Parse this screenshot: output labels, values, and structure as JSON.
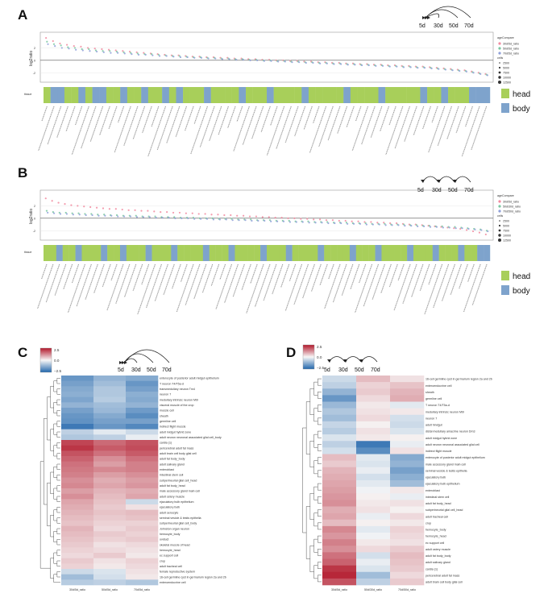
{
  "panels": {
    "A": {
      "letter": "A",
      "ylabel": "log2ratio",
      "tissue_label": "tissue",
      "timeline": [
        "5d",
        "30d",
        "50d",
        "70d"
      ],
      "legend": {
        "title": "ageCompare",
        "series": [
          "30d/5d_ratio",
          "50d/5d_ratio",
          "70d/5d_ratio"
        ],
        "size_title": "cells",
        "sizes": [
          "2500",
          "5000",
          "7500",
          "10000",
          "12500"
        ]
      },
      "tissue_legend": [
        "head",
        "body"
      ]
    },
    "B": {
      "letter": "B",
      "ylabel": "log2ratio",
      "tissue_label": "tissue",
      "timeline": [
        "5d",
        "30d",
        "50d",
        "70d"
      ],
      "legend": {
        "title": "ageCompare",
        "series": [
          "30d/5d_ratio",
          "50d/30d_ratio",
          "70d/50d_ratio"
        ],
        "size_title": "cells",
        "sizes": [
          "2500",
          "5000",
          "7500",
          "10000",
          "12500"
        ]
      },
      "tissue_legend": [
        "head",
        "body"
      ]
    },
    "C": {
      "letter": "C",
      "timeline": [
        "5d",
        "30d",
        "50d",
        "70d"
      ],
      "scale_ticks": [
        "2.5",
        "0.0",
        "−2.5"
      ]
    },
    "D": {
      "letter": "D",
      "timeline": [
        "5d",
        "30d",
        "50d",
        "70d"
      ],
      "scale_ticks": [
        "2.5",
        "0.0",
        "−2.5"
      ]
    }
  },
  "colors": {
    "head": "#a8cf5a",
    "body": "#7ea3cc",
    "s1": "#f28ba0",
    "s2": "#7ac7a0",
    "s3": "#8f9fd9",
    "hi": "#b2182b",
    "lo": "#2166ac"
  },
  "chart_data": [
    {
      "type": "scatter",
      "panel": "A",
      "ylabel": "log2ratio",
      "series": [
        {
          "name": "30d/5d_ratio",
          "values": [
            3.6,
            3.1,
            2.7,
            2.5,
            2.3,
            2.2,
            2.0,
            1.9,
            1.8,
            1.7,
            1.6,
            1.5,
            1.4,
            1.3,
            1.2,
            1.1,
            1.0,
            0.9,
            0.8,
            0.8,
            0.7,
            0.6,
            0.6,
            0.5,
            0.5,
            0.4,
            0.4,
            0.3,
            0.3,
            0.2,
            0.2,
            0.1,
            0.1,
            0.0,
            0.0,
            -0.1,
            -0.1,
            -0.2,
            -0.2,
            -0.3,
            -0.3,
            -0.4,
            -0.4,
            -0.5,
            -0.5,
            -0.6,
            -0.6,
            -0.7,
            -0.7,
            -0.8,
            -0.8,
            -0.9,
            -0.9,
            -1.0,
            -1.0,
            -1.1,
            -1.2,
            -1.3,
            -1.4,
            -1.5,
            -1.6,
            -1.8,
            -2.0,
            -2.2
          ]
        },
        {
          "name": "50d/5d_ratio",
          "values": [
            3.0,
            2.6,
            2.4,
            2.1,
            2.0,
            1.8,
            1.8,
            1.6,
            1.5,
            1.5,
            1.4,
            1.3,
            1.2,
            1.1,
            1.0,
            1.0,
            0.9,
            0.8,
            0.7,
            0.7,
            0.6,
            0.5,
            0.5,
            0.4,
            0.4,
            0.3,
            0.3,
            0.2,
            0.2,
            0.1,
            0.1,
            0.0,
            0.0,
            -0.1,
            -0.1,
            -0.2,
            -0.2,
            -0.3,
            -0.3,
            -0.4,
            -0.4,
            -0.5,
            -0.5,
            -0.6,
            -0.6,
            -0.7,
            -0.7,
            -0.8,
            -0.8,
            -0.9,
            -0.9,
            -1.0,
            -1.0,
            -1.1,
            -1.1,
            -1.2,
            -1.3,
            -1.4,
            -1.5,
            -1.6,
            -1.7,
            -1.9,
            -2.1,
            -2.3
          ]
        },
        {
          "name": "70d/5d_ratio",
          "values": [
            2.6,
            2.3,
            2.0,
            1.9,
            1.7,
            1.6,
            1.5,
            1.4,
            1.3,
            1.2,
            1.2,
            1.1,
            1.0,
            0.9,
            0.9,
            0.8,
            0.7,
            0.7,
            0.6,
            0.5,
            0.5,
            0.4,
            0.4,
            0.3,
            0.3,
            0.2,
            0.2,
            0.1,
            0.1,
            0.0,
            0.0,
            -0.1,
            -0.1,
            -0.2,
            -0.2,
            -0.3,
            -0.3,
            -0.4,
            -0.4,
            -0.5,
            -0.5,
            -0.6,
            -0.6,
            -0.7,
            -0.7,
            -0.8,
            -0.8,
            -0.9,
            -0.9,
            -1.0,
            -1.0,
            -1.1,
            -1.1,
            -1.2,
            -1.2,
            -1.3,
            -1.4,
            -1.5,
            -1.6,
            -1.7,
            -1.8,
            -2.0,
            -2.2,
            -2.4
          ]
        }
      ],
      "tissue": [
        "h",
        "b",
        "b",
        "h",
        "h",
        "b",
        "h",
        "b",
        "b",
        "h",
        "h",
        "b",
        "h",
        "h",
        "b",
        "h",
        "h",
        "b",
        "h",
        "b",
        "h",
        "h",
        "h",
        "b",
        "h",
        "h",
        "h",
        "h",
        "b",
        "h",
        "h",
        "h",
        "b",
        "h",
        "h",
        "h",
        "h",
        "b",
        "h",
        "h",
        "h",
        "h",
        "h",
        "b",
        "h",
        "h",
        "h",
        "h",
        "b",
        "h",
        "h",
        "h",
        "h",
        "h",
        "b",
        "h",
        "h",
        "b",
        "h",
        "h",
        "h",
        "b",
        "b",
        "b"
      ]
    },
    {
      "type": "scatter",
      "panel": "B",
      "ylabel": "log2ratio",
      "series": [
        {
          "name": "30d/5d_ratio",
          "values": [
            3.2,
            2.8,
            2.5,
            2.3,
            2.1,
            2.0,
            1.9,
            1.8,
            1.7,
            1.6,
            1.5,
            1.5,
            1.4,
            1.3,
            1.3,
            1.2,
            1.2,
            1.1,
            1.0,
            1.0,
            0.9,
            0.9,
            0.8,
            0.8,
            0.7,
            0.7,
            0.6,
            0.6,
            0.5,
            0.5,
            0.4,
            0.4,
            0.3,
            0.3,
            0.2,
            0.2,
            0.1,
            0.1,
            0.0,
            0.0,
            -0.1,
            -0.1,
            -0.2,
            -0.2,
            -0.3,
            -0.3,
            -0.4,
            -0.4,
            -0.5,
            -0.5,
            -0.6,
            -0.6,
            -0.7,
            -0.7,
            -0.8,
            -0.8,
            -0.9,
            -1.0,
            -1.0,
            -1.1,
            -1.2,
            -1.3,
            -1.4,
            -1.5,
            -1.6,
            -1.7,
            -1.9,
            -2.1,
            -2.3,
            -2.6
          ]
        },
        {
          "name": "50d/30d_ratio",
          "values": [
            1.2,
            1.0,
            0.9,
            0.9,
            0.8,
            0.8,
            0.7,
            0.7,
            0.6,
            0.6,
            0.5,
            0.5,
            0.4,
            0.4,
            0.4,
            0.3,
            0.3,
            0.3,
            0.2,
            0.2,
            0.2,
            0.1,
            0.1,
            0.1,
            0.0,
            0.0,
            0.0,
            -0.1,
            -0.1,
            -0.1,
            -0.2,
            -0.2,
            -0.2,
            -0.3,
            -0.3,
            -0.3,
            -0.4,
            -0.4,
            -0.4,
            -0.5,
            -0.5,
            -0.5,
            -0.6,
            -0.6,
            -0.6,
            -0.7,
            -0.7,
            -0.7,
            -0.8,
            -0.8,
            -0.8,
            -0.9,
            -0.9,
            -0.9,
            -1.0,
            -1.0,
            -1.0,
            -1.1,
            -1.1,
            -1.2,
            -1.2,
            -1.3,
            -1.3,
            -1.4,
            -1.4,
            -1.5,
            -1.6,
            -1.7,
            -1.8,
            -2.0
          ]
        },
        {
          "name": "70d/50d_ratio",
          "values": [
            0.9,
            0.8,
            0.7,
            0.7,
            0.6,
            0.6,
            0.5,
            0.5,
            0.4,
            0.4,
            0.4,
            0.3,
            0.3,
            0.3,
            0.2,
            0.2,
            0.2,
            0.1,
            0.1,
            0.1,
            0.0,
            0.0,
            0.0,
            -0.1,
            -0.1,
            -0.1,
            -0.2,
            -0.2,
            -0.2,
            -0.3,
            -0.3,
            -0.3,
            -0.4,
            -0.4,
            -0.4,
            -0.5,
            -0.5,
            -0.5,
            -0.6,
            -0.6,
            -0.6,
            -0.7,
            -0.7,
            -0.7,
            -0.8,
            -0.8,
            -0.8,
            -0.9,
            -0.9,
            -0.9,
            -1.0,
            -1.0,
            -1.0,
            -1.1,
            -1.1,
            -1.1,
            -1.2,
            -1.2,
            -1.3,
            -1.3,
            -1.4,
            -1.4,
            -1.5,
            -1.5,
            -1.6,
            -1.6,
            -1.7,
            -1.8,
            -1.9,
            -2.1
          ]
        }
      ],
      "tissue": [
        "h",
        "h",
        "b",
        "h",
        "h",
        "b",
        "h",
        "h",
        "h",
        "b",
        "h",
        "h",
        "b",
        "h",
        "h",
        "h",
        "b",
        "h",
        "h",
        "h",
        "b",
        "h",
        "h",
        "h",
        "h",
        "b",
        "h",
        "h",
        "h",
        "b",
        "h",
        "h",
        "h",
        "h",
        "b",
        "h",
        "h",
        "h",
        "b",
        "h",
        "h",
        "h",
        "h",
        "b",
        "h",
        "h",
        "h",
        "h",
        "b",
        "h",
        "h",
        "h",
        "b",
        "h",
        "h",
        "h",
        "h",
        "b",
        "h",
        "h",
        "h",
        "b",
        "h",
        "h",
        "h",
        "b",
        "h",
        "h",
        "b",
        "b"
      ]
    },
    {
      "type": "heatmap",
      "panel": "C",
      "columns": [
        "30d/5d_ratio",
        "50d/5d_ratio",
        "70d/5d_ratio"
      ],
      "rows": [
        "enterocyte of posterior adult midgut epithelium",
        "T neuron T4/T5a-d",
        "transmedullary neuron Tm4",
        "neuron 7",
        "medullary intrinsic neuron Mi9",
        "visceral muscle of the crop",
        "muscle cell",
        "sheath",
        "germline cell",
        "indirect flight muscle",
        "adult midgut hybrid zone",
        "adult neuron neuronal associated glial cell_body",
        "cardia (1)",
        "pericerebral adult fat mass",
        "adult brain cell body glial cell",
        "adult fat body_body",
        "adult salivary gland",
        "enteroblast",
        "intestinal stem cell",
        "subperineurial glial cell_head",
        "adult fat body_head",
        "male accessory gland main cell",
        "adult ostery muscle",
        "ejaculatory bulb epithelium",
        "ejaculatory bulb",
        "adult oenocyte",
        "seminal vesicle & testis epithelia",
        "subperineurial glial cell_body",
        "Johnston organ neuron",
        "hemocyte_body",
        "oviduct",
        "skeletal muscle of head",
        "hemocyte_head",
        "ec support cell",
        "crop",
        "adult tracheal cell",
        "female reproductive system",
        "16-cell germline cyst in germarium region 2a and 2b",
        "enteroendocrine cell"
      ],
      "values": [
        [
          -2.0,
          -1.4,
          -1.6
        ],
        [
          -1.8,
          -1.2,
          -2.0
        ],
        [
          -1.6,
          -1.0,
          -1.8
        ],
        [
          -1.5,
          -1.0,
          -1.5
        ],
        [
          -1.7,
          -0.9,
          -1.6
        ],
        [
          -1.4,
          -1.2,
          -1.4
        ],
        [
          -1.8,
          -1.3,
          -1.9
        ],
        [
          -2.0,
          -1.6,
          -2.2
        ],
        [
          -2.1,
          -1.8,
          -1.8
        ],
        [
          -2.6,
          -2.0,
          -2.3
        ],
        [
          -0.8,
          -0.3,
          -0.6
        ],
        [
          -1.0,
          -0.8,
          -0.2
        ],
        [
          2.4,
          1.9,
          2.2
        ],
        [
          2.6,
          2.1,
          2.3
        ],
        [
          2.2,
          1.8,
          2.1
        ],
        [
          2.0,
          1.4,
          1.8
        ],
        [
          1.8,
          1.2,
          1.6
        ],
        [
          1.7,
          1.5,
          1.6
        ],
        [
          1.6,
          1.2,
          1.4
        ],
        [
          1.4,
          1.0,
          1.2
        ],
        [
          1.5,
          1.1,
          1.3
        ],
        [
          1.2,
          0.9,
          1.0
        ],
        [
          1.4,
          0.8,
          1.1
        ],
        [
          1.1,
          0.7,
          -0.6
        ],
        [
          1.0,
          0.6,
          0.3
        ],
        [
          0.9,
          0.7,
          0.8
        ],
        [
          0.8,
          0.6,
          0.7
        ],
        [
          0.7,
          0.5,
          0.5
        ],
        [
          0.9,
          0.4,
          0.6
        ],
        [
          0.8,
          0.6,
          0.5
        ],
        [
          0.7,
          0.5,
          0.6
        ],
        [
          0.6,
          0.3,
          0.4
        ],
        [
          0.5,
          0.4,
          0.3
        ],
        [
          0.4,
          0.6,
          0.2
        ],
        [
          0.6,
          0.3,
          0.5
        ],
        [
          0.5,
          0.2,
          0.4
        ],
        [
          -0.6,
          -0.4,
          0.3
        ],
        [
          -1.2,
          -0.5,
          0.2
        ],
        [
          -0.9,
          -0.8,
          -1.0
        ]
      ]
    },
    {
      "type": "heatmap",
      "panel": "D",
      "columns": [
        "30d/5d_ratio",
        "50d/30d_ratio",
        "70d/50d_ratio"
      ],
      "rows": [
        "16-cell germline cyst in germarium region 2a and 2b",
        "enteroendocrine cell",
        "sheath",
        "germline cell",
        "T neuron T4/T5a-d",
        "medullary intrinsic neuron Mi9",
        "neuron 7",
        "adult hindgut",
        "distal medullary amacrine neuron Dm3",
        "adult midgut hybrid zone",
        "adult neuron neuronal associated glial cell",
        "indirect flight muscle",
        "enterocyte of posterior adult midgut epithelium",
        "male accessory gland main cell",
        "seminal vesicle & testis epithelia",
        "ejaculatory bulb",
        "ejaculatory bulb epithelium",
        "enteroblast",
        "intestinal stem cell",
        "adult fat body_head",
        "subperineurial glial cell_head",
        "adult tracheal cell",
        "crop",
        "hemocyte_body",
        "hemocyte_head",
        "ec support cell",
        "adult ostery muscle",
        "adult fat body_body",
        "adult salivary gland",
        "cardia (1)",
        "pericerebral adult fat mass",
        "adult brain cell body glial cell"
      ],
      "values": [
        [
          -0.6,
          0.8,
          0.3
        ],
        [
          -0.8,
          0.5,
          0.7
        ],
        [
          -1.4,
          0.6,
          0.9
        ],
        [
          -2.0,
          0.4,
          1.0
        ],
        [
          -1.3,
          0.2,
          -0.3
        ],
        [
          -1.0,
          0.3,
          0.2
        ],
        [
          -1.2,
          0.4,
          -0.5
        ],
        [
          -0.7,
          0.1,
          -0.6
        ],
        [
          -0.9,
          0.3,
          -0.4
        ],
        [
          -0.4,
          0.2,
          0.1
        ],
        [
          -0.8,
          -2.6,
          -0.2
        ],
        [
          -0.5,
          -2.2,
          0.3
        ],
        [
          0.8,
          -0.3,
          -1.6
        ],
        [
          0.6,
          -0.4,
          -1.4
        ],
        [
          0.9,
          -0.2,
          -1.8
        ],
        [
          1.0,
          -0.5,
          -1.5
        ],
        [
          1.1,
          -0.3,
          -1.2
        ],
        [
          1.2,
          -0.1,
          0.2
        ],
        [
          1.3,
          0.1,
          -0.2
        ],
        [
          1.4,
          0.2,
          0.3
        ],
        [
          1.0,
          0.3,
          0.1
        ],
        [
          1.1,
          -0.2,
          0.4
        ],
        [
          0.8,
          0.1,
          0.2
        ],
        [
          1.5,
          -0.3,
          0.5
        ],
        [
          1.3,
          -0.1,
          0.4
        ],
        [
          1.6,
          0.2,
          0.3
        ],
        [
          1.4,
          0.4,
          0.6
        ],
        [
          1.8,
          -0.5,
          0.8
        ],
        [
          2.0,
          -0.2,
          0.7
        ],
        [
          2.6,
          -0.4,
          0.6
        ],
        [
          2.8,
          -1.2,
          0.4
        ],
        [
          2.2,
          -0.8,
          0.6
        ]
      ]
    }
  ]
}
